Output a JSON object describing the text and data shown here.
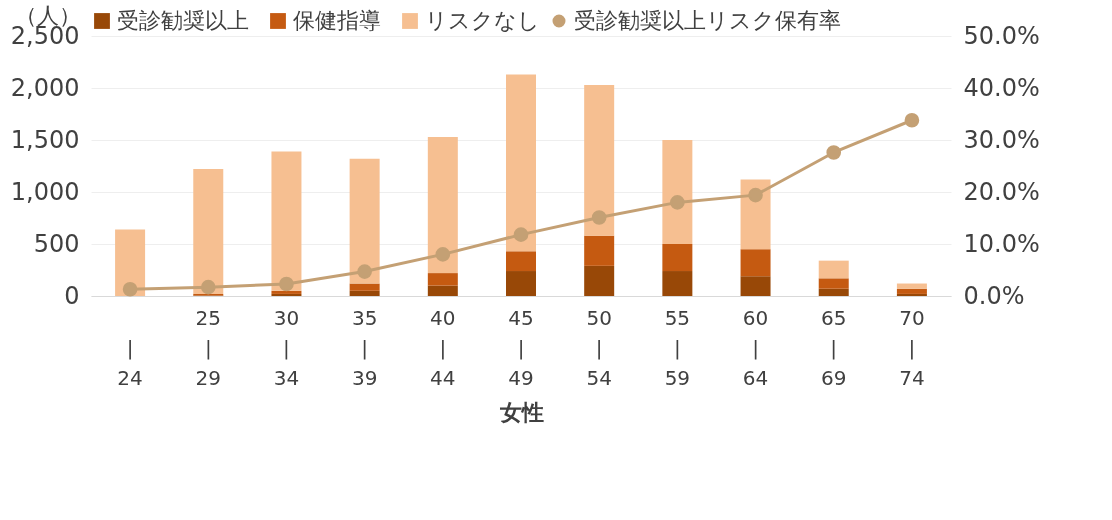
{
  "chart_data": {
    "type": "bar",
    "stacked": true,
    "xlabel": "女性",
    "ylabel": "（人）",
    "categories": [
      "\n|\n24",
      "25\n|\n29",
      "30\n|\n34",
      "35\n|\n39",
      "40\n|\n44",
      "45\n|\n49",
      "50\n|\n54",
      "55\n|\n59",
      "60\n|\n64",
      "65\n|\n69",
      "70\n|\n74"
    ],
    "series": [
      {
        "name": "受診勧奨以上",
        "color": "#984807",
        "values": [
          0,
          5,
          20,
          50,
          100,
          240,
          290,
          240,
          190,
          70,
          20
        ]
      },
      {
        "name": "保健指導",
        "color": "#c55a11",
        "values": [
          0,
          15,
          30,
          70,
          120,
          190,
          290,
          260,
          260,
          100,
          50
        ]
      },
      {
        "name": "リスクなし",
        "color": "#f6bf91",
        "values": [
          640,
          1200,
          1340,
          1200,
          1310,
          1700,
          1450,
          1000,
          670,
          170,
          50
        ]
      },
      {
        "name": "受診勧奨以上リスク保有率",
        "type": "line",
        "axis": "y2",
        "color": "#c4a074",
        "values": [
          1.3,
          1.7,
          2.3,
          4.7,
          8.0,
          11.8,
          15.1,
          18.0,
          19.4,
          27.6,
          33.8
        ]
      }
    ],
    "ylim": [
      0,
      2500
    ],
    "yticks": [
      0,
      500,
      {
        "value": 1000,
        "label": "1,000"
      },
      {
        "value": 1500,
        "label": "1,500"
      },
      {
        "value": 2000,
        "label": "2,000"
      },
      {
        "value": 2500,
        "label": "2,500"
      }
    ],
    "y2lim": [
      0,
      50
    ],
    "y2ticks": [
      {
        "value": 0,
        "label": "0.0%"
      },
      {
        "value": 10,
        "label": "10.0%"
      },
      {
        "value": 20,
        "label": "20.0%"
      },
      {
        "value": 30,
        "label": "30.0%"
      },
      {
        "value": 40,
        "label": "40.0%"
      },
      {
        "value": 50,
        "label": "50.0%"
      }
    ],
    "grid": "y",
    "legend": "top",
    "marker": "circle",
    "line_style": "solid"
  }
}
